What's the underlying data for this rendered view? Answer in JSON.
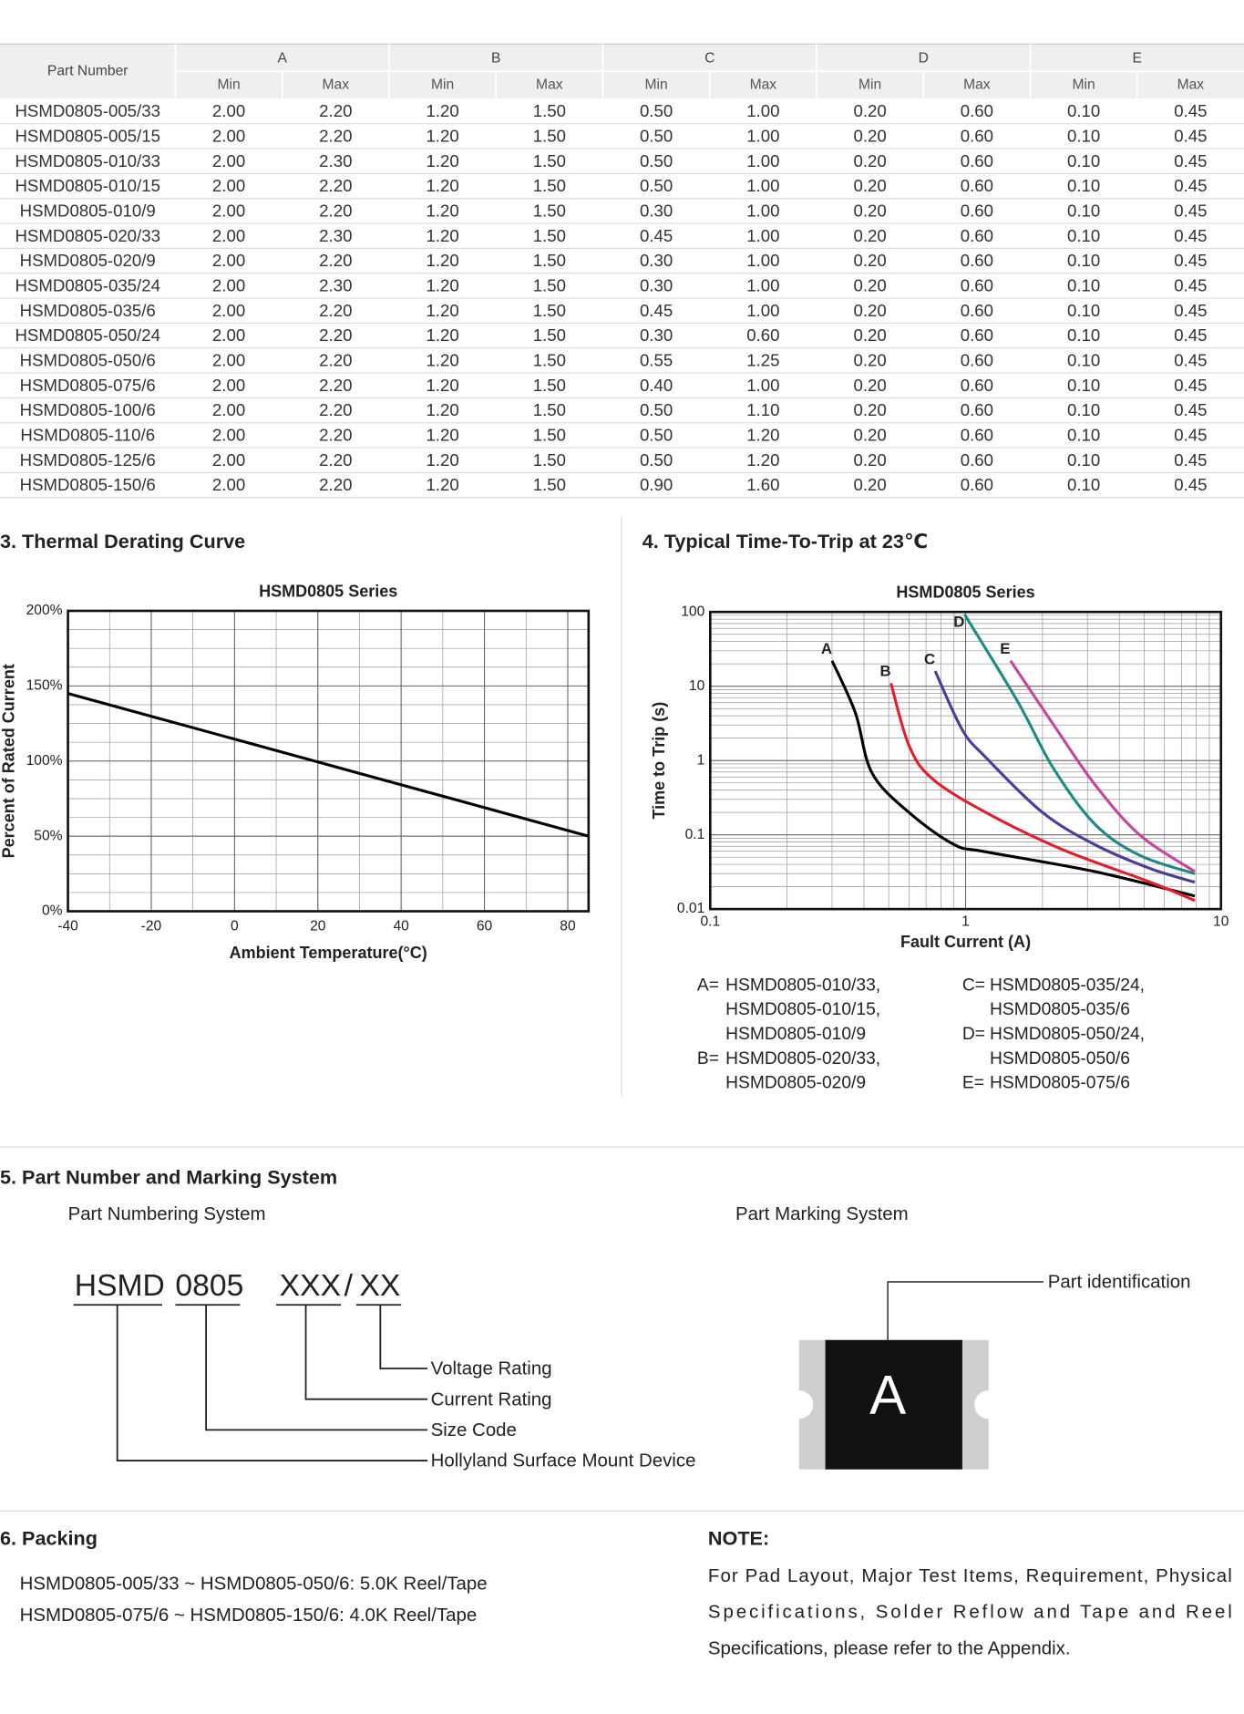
{
  "table": {
    "part_header": "Part Number",
    "groups": [
      "A",
      "B",
      "C",
      "D",
      "E"
    ],
    "subheaders": [
      "Min",
      "Max"
    ],
    "rows": [
      [
        "HSMD0805-005/33",
        "2.00",
        "2.20",
        "1.20",
        "1.50",
        "0.50",
        "1.00",
        "0.20",
        "0.60",
        "0.10",
        "0.45"
      ],
      [
        "HSMD0805-005/15",
        "2.00",
        "2.20",
        "1.20",
        "1.50",
        "0.50",
        "1.00",
        "0.20",
        "0.60",
        "0.10",
        "0.45"
      ],
      [
        "HSMD0805-010/33",
        "2.00",
        "2.30",
        "1.20",
        "1.50",
        "0.50",
        "1.00",
        "0.20",
        "0.60",
        "0.10",
        "0.45"
      ],
      [
        "HSMD0805-010/15",
        "2.00",
        "2.20",
        "1.20",
        "1.50",
        "0.50",
        "1.00",
        "0.20",
        "0.60",
        "0.10",
        "0.45"
      ],
      [
        "HSMD0805-010/9",
        "2.00",
        "2.20",
        "1.20",
        "1.50",
        "0.30",
        "1.00",
        "0.20",
        "0.60",
        "0.10",
        "0.45"
      ],
      [
        "HSMD0805-020/33",
        "2.00",
        "2.30",
        "1.20",
        "1.50",
        "0.45",
        "1.00",
        "0.20",
        "0.60",
        "0.10",
        "0.45"
      ],
      [
        "HSMD0805-020/9",
        "2.00",
        "2.20",
        "1.20",
        "1.50",
        "0.30",
        "1.00",
        "0.20",
        "0.60",
        "0.10",
        "0.45"
      ],
      [
        "HSMD0805-035/24",
        "2.00",
        "2.30",
        "1.20",
        "1.50",
        "0.30",
        "1.00",
        "0.20",
        "0.60",
        "0.10",
        "0.45"
      ],
      [
        "HSMD0805-035/6",
        "2.00",
        "2.20",
        "1.20",
        "1.50",
        "0.45",
        "1.00",
        "0.20",
        "0.60",
        "0.10",
        "0.45"
      ],
      [
        "HSMD0805-050/24",
        "2.00",
        "2.20",
        "1.20",
        "1.50",
        "0.30",
        "0.60",
        "0.20",
        "0.60",
        "0.10",
        "0.45"
      ],
      [
        "HSMD0805-050/6",
        "2.00",
        "2.20",
        "1.20",
        "1.50",
        "0.55",
        "1.25",
        "0.20",
        "0.60",
        "0.10",
        "0.45"
      ],
      [
        "HSMD0805-075/6",
        "2.00",
        "2.20",
        "1.20",
        "1.50",
        "0.40",
        "1.00",
        "0.20",
        "0.60",
        "0.10",
        "0.45"
      ],
      [
        "HSMD0805-100/6",
        "2.00",
        "2.20",
        "1.20",
        "1.50",
        "0.50",
        "1.10",
        "0.20",
        "0.60",
        "0.10",
        "0.45"
      ],
      [
        "HSMD0805-110/6",
        "2.00",
        "2.20",
        "1.20",
        "1.50",
        "0.50",
        "1.20",
        "0.20",
        "0.60",
        "0.10",
        "0.45"
      ],
      [
        "HSMD0805-125/6",
        "2.00",
        "2.20",
        "1.20",
        "1.50",
        "0.50",
        "1.20",
        "0.20",
        "0.60",
        "0.10",
        "0.45"
      ],
      [
        "HSMD0805-150/6",
        "2.00",
        "2.20",
        "1.20",
        "1.50",
        "0.90",
        "1.60",
        "0.20",
        "0.60",
        "0.10",
        "0.45"
      ]
    ]
  },
  "sections": {
    "thermal": "3. Thermal Derating Curve",
    "trip": "4. Typical Time-To-Trip at 23℃",
    "marking": "5. Part Number and Marking System",
    "packing": "6. Packing"
  },
  "chart_data": [
    {
      "type": "line",
      "title": "HSMD0805 Series",
      "x_label": "Ambient Temperature(°C)",
      "y_label": "Percent of Rated Current",
      "x": [
        -40,
        85
      ],
      "values": [
        145,
        50
      ],
      "color": "#000000",
      "xlim": [
        -40,
        85
      ],
      "xticks": [
        -40,
        -20,
        0,
        20,
        40,
        60,
        80
      ],
      "ylim": [
        0,
        200
      ],
      "yticks": [
        {
          "value": 0,
          "label": "0%"
        },
        {
          "value": 50,
          "label": "50%"
        },
        {
          "value": 100,
          "label": "100%"
        },
        {
          "value": 150,
          "label": "150%"
        },
        {
          "value": 200,
          "label": "200%"
        }
      ],
      "grid": true
    },
    {
      "type": "line",
      "title": "HSMD0805 Series",
      "x_label": "Fault Current (A)",
      "y_label": "Time to Trip (s)",
      "log_x": true,
      "log_y": true,
      "grid": true,
      "xlim": [
        0.1,
        10
      ],
      "xticks": [
        0.1,
        1,
        10
      ],
      "ylim": [
        0.01,
        100
      ],
      "yticks": [
        0.01,
        0.1,
        1,
        10,
        100
      ],
      "series": [
        {
          "name": "A",
          "color": "#000000",
          "x": [
            0.3,
            0.37,
            0.43,
            0.6,
            0.9,
            1.2,
            3.2,
            7.9
          ],
          "values": [
            22,
            4.4,
            0.68,
            0.2,
            0.074,
            0.059,
            0.032,
            0.015
          ]
        },
        {
          "name": "B",
          "color": "#e0202e",
          "x": [
            0.51,
            0.6,
            0.74,
            1.2,
            2.4,
            5.3,
            7.9
          ],
          "values": [
            11,
            1.6,
            0.57,
            0.2,
            0.063,
            0.023,
            0.013
          ]
        },
        {
          "name": "C",
          "color": "#4a3f98",
          "x": [
            0.76,
            0.97,
            1.2,
            2,
            3.2,
            5.3,
            7.9
          ],
          "values": [
            16,
            2.6,
            1.1,
            0.2,
            0.074,
            0.035,
            0.023
          ]
        },
        {
          "name": "D",
          "color": "#1f8a80",
          "x": [
            0.99,
            1.6,
            2.2,
            3.2,
            4.8,
            7.9
          ],
          "values": [
            93,
            6.2,
            0.8,
            0.14,
            0.053,
            0.03
          ]
        },
        {
          "name": "E",
          "color": "#c2489e",
          "x": [
            1.5,
            2.2,
            3.2,
            4.8,
            7.9
          ],
          "values": [
            22,
            3.1,
            0.48,
            0.1,
            0.032
          ]
        }
      ],
      "legend": [
        {
          "key": "A=",
          "lines": [
            "HSMD0805-010/33,",
            "HSMD0805-010/15,",
            "HSMD0805-010/9"
          ]
        },
        {
          "key": "B=",
          "lines": [
            "HSMD0805-020/33,",
            "HSMD0805-020/9"
          ]
        },
        {
          "key": "C=",
          "lines": [
            "HSMD0805-035/24,",
            "HSMD0805-035/6"
          ]
        },
        {
          "key": "D=",
          "lines": [
            "HSMD0805-050/24,",
            "HSMD0805-050/6"
          ]
        },
        {
          "key": "E=",
          "lines": [
            "HSMD0805-075/6"
          ]
        }
      ]
    }
  ],
  "numbering": {
    "title": "Part Numbering System",
    "parts": [
      "HSMD",
      "0805",
      "XXX",
      "/",
      "XX"
    ],
    "labels": [
      "Voltage Rating",
      "Current Rating",
      "Size Code",
      "Hollyland Surface Mount Device"
    ]
  },
  "marking": {
    "title": "Part Marking System",
    "chip_text": "A",
    "label": "Part identification"
  },
  "packing": {
    "lines": [
      "HSMD0805-005/33 ~ HSMD0805-050/6:  5.0K Reel/Tape",
      "HSMD0805-075/6 ~ HSMD0805-150/6:  4.0K Reel/Tape"
    ]
  },
  "note": {
    "title": "NOTE:",
    "lines": [
      "For Pad Layout, Major Test Items, Requirement, Physical",
      "Specifications, Solder Reflow and Tape and Reel",
      "Specifications, please refer to the Appendix."
    ]
  }
}
